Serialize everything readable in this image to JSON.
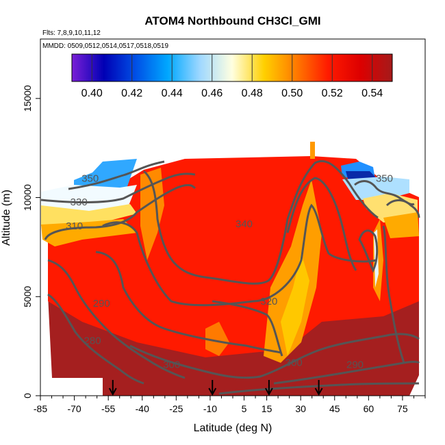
{
  "chart_data": {
    "type": "heatmap",
    "title": "ATOM4 Northbound CH3Cl_GMI",
    "subtitle_flights": "Flts: 7,8,9,10,11,12",
    "subtitle_dates": "MMDD: 0509,0512,0514,0517,0518,0519",
    "xlabel": "Latitude (deg N)",
    "ylabel": "Altitude (m)",
    "xlim": [
      -85,
      85
    ],
    "ylim": [
      0,
      18000
    ],
    "xticks": [
      -85,
      -70,
      -55,
      -40,
      -25,
      -10,
      5,
      15,
      30,
      45,
      60,
      75
    ],
    "yticks": [
      0,
      5000,
      10000,
      15000
    ],
    "colorbar": {
      "ticks": [
        0.4,
        0.42,
        0.44,
        0.46,
        0.48,
        0.5,
        0.52,
        0.54
      ],
      "tick_labels": [
        "0.40",
        "0.42",
        "0.44",
        "0.46",
        "0.48",
        "0.50",
        "0.52",
        "0.54"
      ],
      "range": [
        0.39,
        0.55
      ],
      "colors": [
        "#7a1fd6",
        "#0000b4",
        "#0050e6",
        "#00a8ff",
        "#9fd8ff",
        "#ffffe0",
        "#ffd000",
        "#ff7a00",
        "#ff1a00",
        "#dd0000",
        "#a51a1a"
      ]
    },
    "contour_labels": [
      "350",
      "330",
      "310",
      "340",
      "320",
      "290",
      "280",
      "300",
      "300",
      "290",
      "350"
    ],
    "contour_label_positions": [
      {
        "lat": -63,
        "alt": 10800
      },
      {
        "lat": -68,
        "alt": 9600
      },
      {
        "lat": -70,
        "alt": 8400
      },
      {
        "lat": 5,
        "alt": 8500
      },
      {
        "lat": 16,
        "alt": 4600
      },
      {
        "lat": -58,
        "alt": 4500
      },
      {
        "lat": -62,
        "alt": 2600
      },
      {
        "lat": -27,
        "alt": 1400
      },
      {
        "lat": 27,
        "alt": 1500
      },
      {
        "lat": 54,
        "alt": 1400
      },
      {
        "lat": 67,
        "alt": 10800
      }
    ],
    "arrow_markers_lat": [
      -53,
      -9,
      16,
      38
    ]
  }
}
